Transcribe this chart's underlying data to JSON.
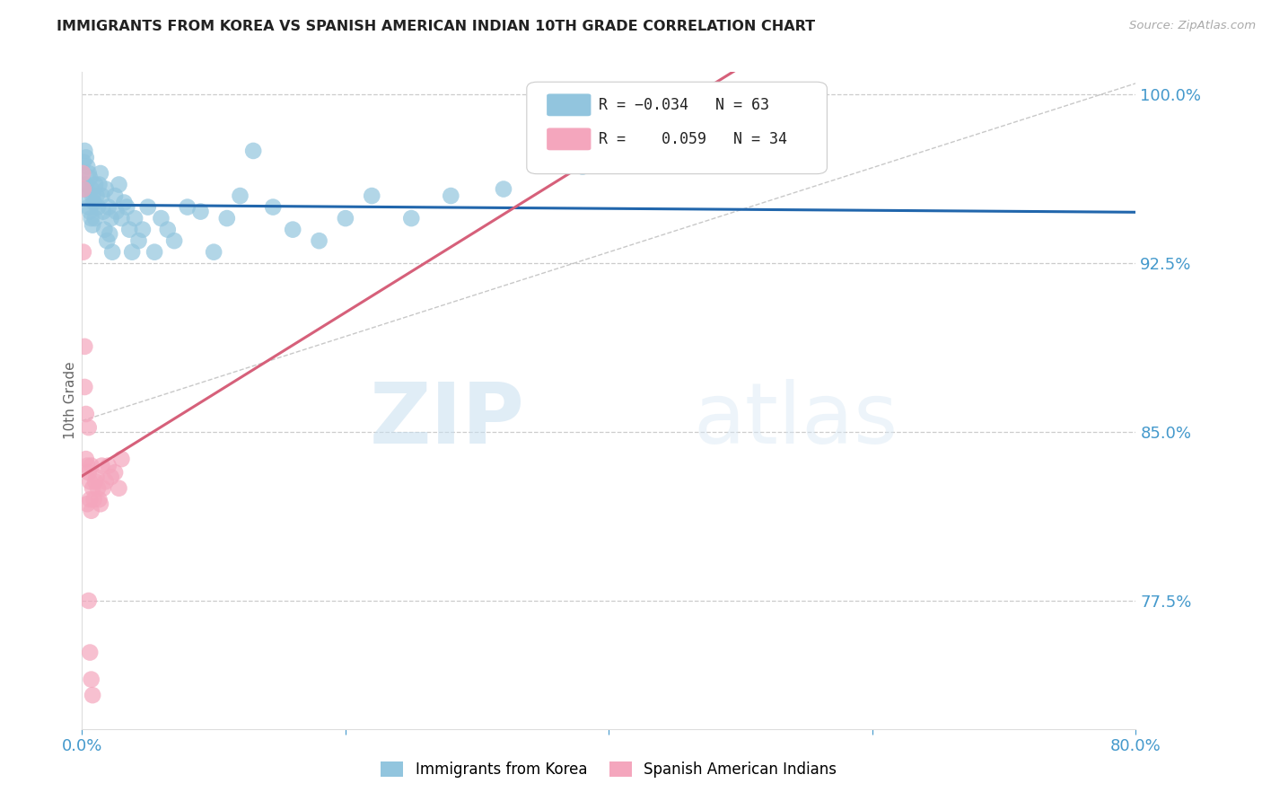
{
  "title": "IMMIGRANTS FROM KOREA VS SPANISH AMERICAN INDIAN 10TH GRADE CORRELATION CHART",
  "source": "Source: ZipAtlas.com",
  "ylabel": "10th Grade",
  "watermark_zip": "ZIP",
  "watermark_atlas": "atlas",
  "x_min": 0.0,
  "x_max": 0.8,
  "y_min": 0.718,
  "y_max": 1.01,
  "y_ticks": [
    0.775,
    0.85,
    0.925,
    1.0
  ],
  "y_tick_labels": [
    "77.5%",
    "85.0%",
    "92.5%",
    "100.0%"
  ],
  "korea_color": "#92c5de",
  "spanish_color": "#f4a6bd",
  "korea_line_color": "#2166ac",
  "spanish_line_color": "#d6607a",
  "diag_line_color": "#bbbbbb",
  "grid_color": "#cccccc",
  "background_color": "#ffffff",
  "title_color": "#222222",
  "axis_label_color": "#666666",
  "right_tick_color": "#4499cc",
  "bottom_tick_color": "#4499cc",
  "korea_x": [
    0.001,
    0.002,
    0.002,
    0.003,
    0.003,
    0.004,
    0.004,
    0.005,
    0.005,
    0.006,
    0.006,
    0.007,
    0.007,
    0.008,
    0.008,
    0.009,
    0.01,
    0.01,
    0.011,
    0.012,
    0.013,
    0.014,
    0.015,
    0.016,
    0.017,
    0.018,
    0.019,
    0.02,
    0.021,
    0.022,
    0.023,
    0.025,
    0.026,
    0.028,
    0.03,
    0.032,
    0.034,
    0.036,
    0.038,
    0.04,
    0.043,
    0.046,
    0.05,
    0.055,
    0.06,
    0.065,
    0.07,
    0.08,
    0.09,
    0.1,
    0.11,
    0.12,
    0.13,
    0.145,
    0.16,
    0.18,
    0.2,
    0.22,
    0.25,
    0.28,
    0.32,
    0.38,
    0.43
  ],
  "korea_y": [
    0.97,
    0.975,
    0.958,
    0.972,
    0.96,
    0.968,
    0.955,
    0.965,
    0.95,
    0.963,
    0.948,
    0.958,
    0.945,
    0.955,
    0.942,
    0.952,
    0.96,
    0.945,
    0.955,
    0.95,
    0.96,
    0.965,
    0.955,
    0.948,
    0.94,
    0.958,
    0.935,
    0.95,
    0.938,
    0.945,
    0.93,
    0.955,
    0.948,
    0.96,
    0.945,
    0.952,
    0.95,
    0.94,
    0.93,
    0.945,
    0.935,
    0.94,
    0.95,
    0.93,
    0.945,
    0.94,
    0.935,
    0.95,
    0.948,
    0.93,
    0.945,
    0.955,
    0.975,
    0.95,
    0.94,
    0.935,
    0.945,
    0.955,
    0.945,
    0.955,
    0.958,
    0.968,
    0.97
  ],
  "spanish_x": [
    0.0005,
    0.001,
    0.001,
    0.002,
    0.002,
    0.003,
    0.003,
    0.004,
    0.004,
    0.005,
    0.005,
    0.006,
    0.006,
    0.007,
    0.007,
    0.008,
    0.009,
    0.01,
    0.011,
    0.012,
    0.013,
    0.014,
    0.015,
    0.016,
    0.018,
    0.02,
    0.022,
    0.025,
    0.028,
    0.03,
    0.005,
    0.006,
    0.007,
    0.008
  ],
  "spanish_y": [
    0.965,
    0.958,
    0.93,
    0.888,
    0.87,
    0.858,
    0.838,
    0.835,
    0.818,
    0.852,
    0.832,
    0.828,
    0.82,
    0.835,
    0.815,
    0.825,
    0.82,
    0.828,
    0.83,
    0.825,
    0.82,
    0.818,
    0.835,
    0.825,
    0.828,
    0.835,
    0.83,
    0.832,
    0.825,
    0.838,
    0.775,
    0.752,
    0.74,
    0.733
  ]
}
